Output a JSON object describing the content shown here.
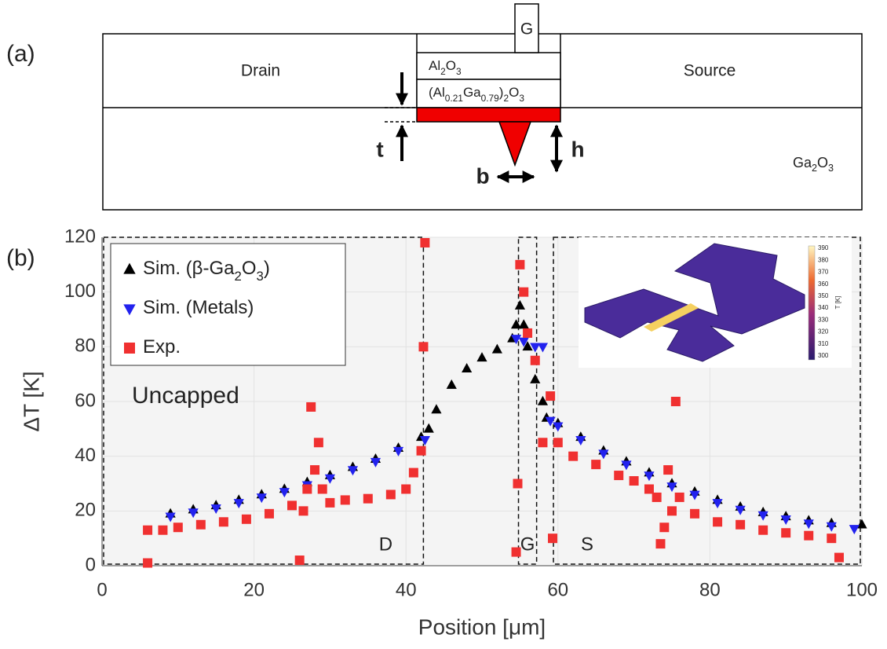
{
  "diagram": {
    "panel_a": "(a)",
    "drain": "Drain",
    "source": "Source",
    "gate": "G",
    "oxide": "Al2O3",
    "barrier": "(Al0.21Ga0.79)2O3",
    "substrate": "Ga2O3",
    "t": "t",
    "h": "h",
    "b": "b"
  },
  "chart_data": {
    "type": "scatter",
    "panel": "(b)",
    "xlabel": "Position [μm]",
    "ylabel": "ΔT [K]",
    "xlim": [
      0,
      100
    ],
    "xticks": [
      0,
      20,
      40,
      60,
      80,
      100
    ],
    "ylim": [
      0,
      120
    ],
    "yticks": [
      0,
      20,
      40,
      60,
      80,
      100,
      120
    ],
    "grid": true,
    "legend": "upper left",
    "annotation": "Uncapped",
    "regions": [
      {
        "label": "D",
        "x": [
          0,
          42.5
        ]
      },
      {
        "label": "G",
        "x": [
          54.6,
          57.4
        ]
      },
      {
        "label": "S",
        "x": [
          59.2,
          100
        ]
      }
    ],
    "series": [
      {
        "name": "Sim. (β-Ga2O3)",
        "color": "#000000",
        "marker": "triangle-up",
        "x": [
          9,
          12,
          15,
          18,
          21,
          24,
          27,
          30,
          33,
          36,
          39,
          42,
          43,
          44,
          46,
          48,
          50,
          52,
          54,
          54.5,
          55,
          55.5,
          56,
          57,
          58,
          58.5,
          60,
          63,
          66,
          69,
          72,
          75,
          78,
          81,
          84,
          87,
          90,
          93,
          96,
          100
        ],
        "values": [
          19,
          20.5,
          22,
          24,
          26,
          28,
          30.5,
          33,
          36,
          39,
          43,
          47,
          50,
          57,
          66,
          72,
          76,
          79,
          83,
          88,
          95,
          88,
          80,
          68,
          60,
          54,
          52,
          47,
          42,
          38,
          34,
          30,
          27,
          24,
          21.5,
          19.5,
          18,
          16.5,
          15.5,
          15
        ]
      },
      {
        "name": "Sim. (Metals)",
        "color": "#2222ee",
        "marker": "triangle-down",
        "x": [
          9,
          12,
          15,
          18,
          21,
          24,
          27,
          30,
          33,
          36,
          39,
          42.5,
          54.5,
          55.5,
          57,
          58,
          59,
          60,
          63,
          66,
          69,
          72,
          75,
          78,
          81,
          84,
          87,
          90,
          93,
          96,
          99
        ],
        "values": [
          18,
          19.5,
          21,
          23,
          25,
          27,
          29.5,
          32,
          35,
          38,
          42,
          46,
          83,
          82,
          80,
          80,
          53,
          51,
          46,
          41,
          37,
          33,
          29,
          26,
          23,
          20.5,
          18.5,
          17,
          15.5,
          14.5,
          13.5
        ]
      },
      {
        "name": "Exp.",
        "color": "#f03030",
        "marker": "square",
        "x": [
          6,
          6,
          8,
          10,
          13,
          16,
          19,
          22,
          25,
          26,
          26.5,
          27,
          27.5,
          28,
          28.5,
          29,
          30,
          32,
          35,
          38,
          40,
          41,
          42,
          42.3,
          42.5,
          54.5,
          54.7,
          55,
          55.5,
          56,
          57,
          58,
          59,
          59.3,
          60,
          62,
          65,
          68,
          70,
          72,
          73,
          73.5,
          74,
          74.5,
          75,
          75.5,
          76,
          78,
          81,
          84,
          87,
          90,
          93,
          96,
          97
        ],
        "values": [
          13,
          1,
          13,
          14,
          15,
          16,
          17,
          19,
          22,
          2,
          20,
          28,
          58,
          35,
          45,
          28,
          23,
          24,
          24.5,
          26,
          28,
          34,
          42,
          80,
          118,
          5,
          30,
          110,
          100,
          85,
          75,
          45,
          62,
          10,
          45,
          40,
          37,
          33,
          31,
          28,
          25,
          8,
          14,
          35,
          20,
          60,
          25,
          19,
          16,
          15,
          13,
          12,
          11,
          10,
          3
        ]
      }
    ],
    "inset": {
      "colorbar_label": "T [K]",
      "colorbar_ticks": [
        300,
        310,
        320,
        330,
        340,
        350,
        360,
        370,
        380,
        390
      ]
    }
  }
}
